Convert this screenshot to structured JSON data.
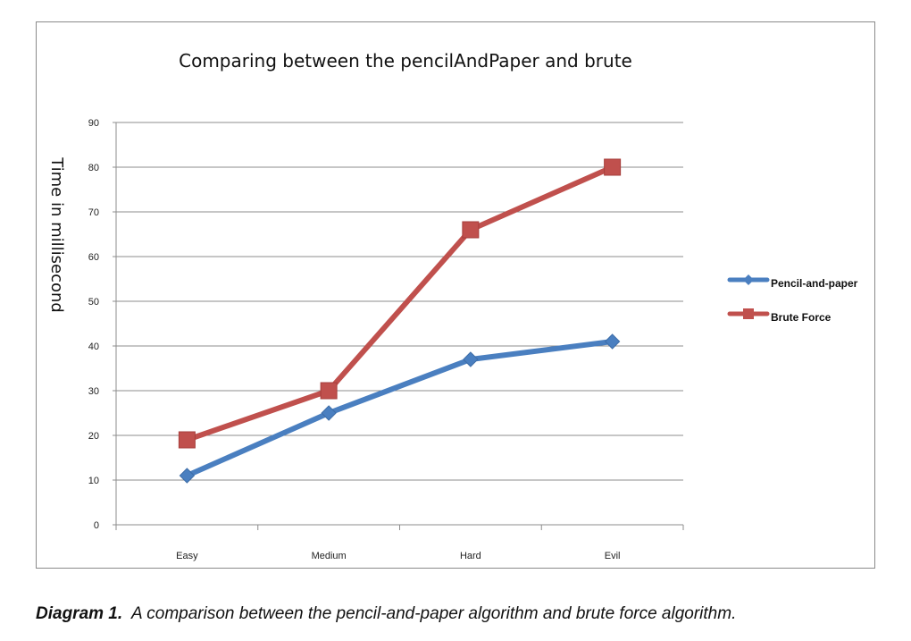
{
  "chart_data": {
    "type": "line",
    "title": "Comparing between the pencilAndPaper and brute",
    "xlabel": "",
    "ylabel": "Time in millisecond",
    "categories": [
      "Easy",
      "Medium",
      "Hard",
      "Evil"
    ],
    "ylim": [
      0,
      90
    ],
    "yticks": [
      0,
      10,
      20,
      30,
      40,
      50,
      60,
      70,
      80,
      90
    ],
    "grid": true,
    "legend_position": "right",
    "series": [
      {
        "name": "Pencil-and-paper",
        "values": [
          11,
          25,
          37,
          41
        ],
        "color": "#4a7fc0",
        "marker": "diamond"
      },
      {
        "name": "Brute Force",
        "values": [
          19,
          30,
          66,
          80
        ],
        "color": "#c0504d",
        "marker": "square"
      }
    ]
  },
  "caption": {
    "label": "Diagram 1.",
    "text": "A comparison between the pencil-and-paper algorithm and brute force algorithm."
  }
}
